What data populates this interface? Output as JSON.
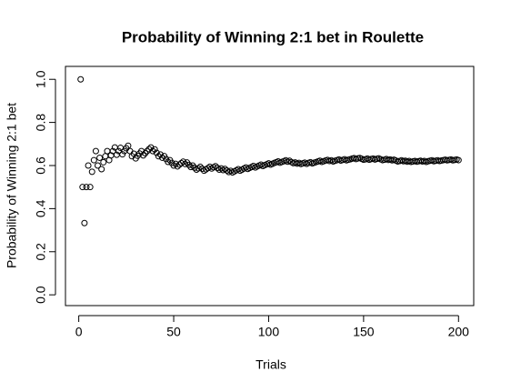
{
  "chart_data": {
    "type": "scatter",
    "title": "Probability of Winning 2:1 bet in Roulette",
    "xlabel": "Trials",
    "ylabel": "Probability of Winning 2:1 bet",
    "color": "#000000",
    "xlim": [
      -7,
      208
    ],
    "ylim": [
      -0.05,
      1.06
    ],
    "xticks": [
      0,
      50,
      100,
      150,
      200
    ],
    "yticks": [
      {
        "value": 0,
        "label": "0.0"
      },
      0.2,
      0.4,
      0.6,
      0.8,
      {
        "value": 1,
        "label": "1.0"
      }
    ],
    "x": [
      1,
      2,
      3,
      4,
      5,
      6,
      7,
      8,
      9,
      10,
      11,
      12,
      13,
      14,
      15,
      16,
      17,
      18,
      19,
      20,
      21,
      22,
      23,
      24,
      25,
      26,
      27,
      28,
      29,
      30,
      31,
      32,
      33,
      34,
      35,
      36,
      37,
      38,
      39,
      40,
      41,
      42,
      43,
      44,
      45,
      46,
      47,
      48,
      49,
      50,
      51,
      52,
      53,
      54,
      55,
      56,
      57,
      58,
      59,
      60,
      61,
      62,
      63,
      64,
      65,
      66,
      67,
      68,
      69,
      70,
      71,
      72,
      73,
      74,
      75,
      76,
      77,
      78,
      79,
      80,
      81,
      82,
      83,
      84,
      85,
      86,
      87,
      88,
      89,
      90,
      91,
      92,
      93,
      94,
      95,
      96,
      97,
      98,
      99,
      100,
      101,
      102,
      103,
      104,
      105,
      106,
      107,
      108,
      109,
      110,
      111,
      112,
      113,
      114,
      115,
      116,
      117,
      118,
      119,
      120,
      121,
      122,
      123,
      124,
      125,
      126,
      127,
      128,
      129,
      130,
      131,
      132,
      133,
      134,
      135,
      136,
      137,
      138,
      139,
      140,
      141,
      142,
      143,
      144,
      145,
      146,
      147,
      148,
      149,
      150,
      151,
      152,
      153,
      154,
      155,
      156,
      157,
      158,
      159,
      160,
      161,
      162,
      163,
      164,
      165,
      166,
      167,
      168,
      169,
      170,
      171,
      172,
      173,
      174,
      175,
      176,
      177,
      178,
      179,
      180,
      181,
      182,
      183,
      184,
      185,
      186,
      187,
      188,
      189,
      190,
      191,
      192,
      193,
      194,
      195,
      196,
      197,
      198,
      199,
      200
    ],
    "values": [
      1.0,
      0.5,
      0.333,
      0.5,
      0.6,
      0.5,
      0.571,
      0.625,
      0.667,
      0.6,
      0.636,
      0.583,
      0.615,
      0.643,
      0.667,
      0.625,
      0.647,
      0.667,
      0.684,
      0.65,
      0.667,
      0.682,
      0.652,
      0.667,
      0.68,
      0.692,
      0.667,
      0.643,
      0.655,
      0.633,
      0.645,
      0.656,
      0.667,
      0.647,
      0.657,
      0.667,
      0.676,
      0.684,
      0.667,
      0.675,
      0.659,
      0.643,
      0.651,
      0.636,
      0.644,
      0.63,
      0.617,
      0.625,
      0.612,
      0.6,
      0.608,
      0.596,
      0.604,
      0.611,
      0.618,
      0.607,
      0.614,
      0.603,
      0.593,
      0.6,
      0.59,
      0.581,
      0.587,
      0.594,
      0.585,
      0.576,
      0.582,
      0.588,
      0.594,
      0.586,
      0.592,
      0.597,
      0.589,
      0.581,
      0.587,
      0.579,
      0.584,
      0.577,
      0.57,
      0.575,
      0.568,
      0.573,
      0.578,
      0.583,
      0.576,
      0.581,
      0.586,
      0.591,
      0.584,
      0.589,
      0.593,
      0.598,
      0.591,
      0.596,
      0.6,
      0.604,
      0.598,
      0.602,
      0.606,
      0.61,
      0.604,
      0.608,
      0.612,
      0.615,
      0.619,
      0.613,
      0.617,
      0.62,
      0.624,
      0.618,
      0.622,
      0.616,
      0.611,
      0.614,
      0.609,
      0.612,
      0.607,
      0.61,
      0.613,
      0.608,
      0.612,
      0.615,
      0.61,
      0.613,
      0.616,
      0.619,
      0.622,
      0.617,
      0.62,
      0.623,
      0.626,
      0.621,
      0.624,
      0.619,
      0.622,
      0.625,
      0.628,
      0.623,
      0.626,
      0.629,
      0.624,
      0.627,
      0.629,
      0.632,
      0.634,
      0.63,
      0.633,
      0.635,
      0.631,
      0.627,
      0.629,
      0.632,
      0.627,
      0.63,
      0.632,
      0.628,
      0.631,
      0.633,
      0.629,
      0.625,
      0.627,
      0.63,
      0.626,
      0.628,
      0.624,
      0.627,
      0.623,
      0.619,
      0.621,
      0.624,
      0.62,
      0.622,
      0.618,
      0.621,
      0.617,
      0.619,
      0.621,
      0.618,
      0.62,
      0.622,
      0.619,
      0.621,
      0.617,
      0.62,
      0.622,
      0.624,
      0.62,
      0.622,
      0.624,
      0.621,
      0.623,
      0.625,
      0.627,
      0.624,
      0.626,
      0.628,
      0.624,
      0.626,
      0.628,
      0.625
    ]
  }
}
